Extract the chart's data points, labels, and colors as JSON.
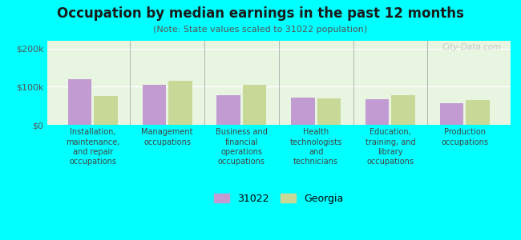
{
  "title": "Occupation by median earnings in the past 12 months",
  "subtitle": "(Note: State values scaled to 31022 population)",
  "categories": [
    "Installation,\nmaintenance,\nand repair\noccupations",
    "Management\noccupations",
    "Business and\nfinancial\noperations\noccupations",
    "Health\ntechnologists\nand\ntechnicians",
    "Education,\ntraining, and\nlibrary\noccupations",
    "Production\noccupations"
  ],
  "values_31022": [
    120000,
    105000,
    77000,
    72000,
    68000,
    57000
  ],
  "values_georgia": [
    75000,
    115000,
    105000,
    70000,
    77000,
    65000
  ],
  "color_31022": "#c39bd3",
  "color_georgia": "#c8d896",
  "ylim": [
    0,
    220000
  ],
  "yticks": [
    0,
    100000,
    200000
  ],
  "ytick_labels": [
    "$0",
    "$100k",
    "$200k"
  ],
  "legend_31022": "31022",
  "legend_georgia": "Georgia",
  "bg_color": "#00ffff",
  "plot_bg": "#e8f5e0",
  "watermark": "City-Data.com"
}
